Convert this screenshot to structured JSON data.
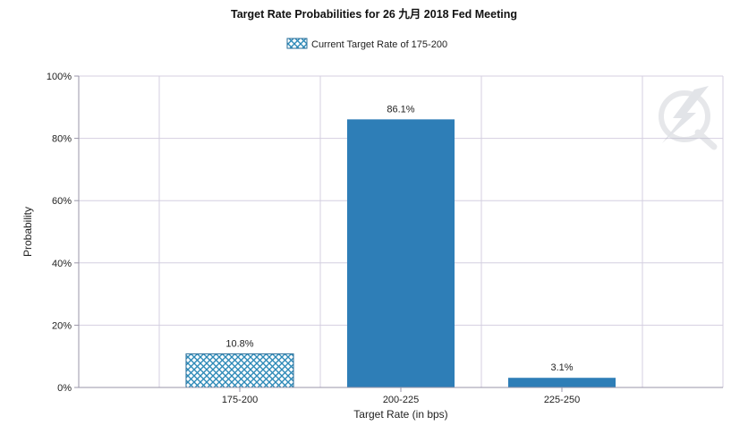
{
  "chart_data": {
    "type": "bar",
    "title": "Target Rate Probabilities for 26 九月 2018 Fed Meeting",
    "legend": {
      "label": "Current Target Rate of 175-200",
      "placement": "top-center"
    },
    "categories": [
      "175-200",
      "200-225",
      "225-250"
    ],
    "values": [
      10.8,
      86.1,
      3.1
    ],
    "data_labels": [
      "10.8%",
      "86.1%",
      "3.1%"
    ],
    "current_category": "175-200",
    "xlabel": "Target Rate (in bps)",
    "ylabel": "Probability",
    "ylim": [
      0,
      100
    ],
    "yticks": [
      0,
      20,
      40,
      60,
      80,
      100
    ],
    "ytick_labels": [
      "0%",
      "20%",
      "40%",
      "60%",
      "80%",
      "100%"
    ],
    "grid": true,
    "colors": {
      "bar": "#2e7eb7",
      "hatch_fill": "#2e8ab8",
      "grid": "#d4cfe0",
      "axis": "#9a96a8"
    }
  },
  "watermark": {
    "icon": "lightning-q-logo-icon"
  }
}
